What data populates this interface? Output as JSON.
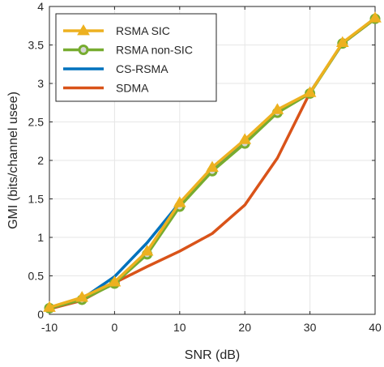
{
  "chart_data": {
    "type": "line",
    "title": "",
    "xlabel": "SNR (dB)",
    "ylabel": "GMI (bits/channel usee)",
    "xlim": [
      -10,
      40
    ],
    "ylim": [
      0,
      4
    ],
    "xticks": [
      -10,
      0,
      10,
      20,
      30,
      40
    ],
    "yticks": [
      0,
      0.5,
      1,
      1.5,
      2,
      2.5,
      3,
      3.5,
      4
    ],
    "xtick_labels": [
      "-10",
      "0",
      "10",
      "20",
      "30",
      "40"
    ],
    "ytick_labels": [
      "0",
      "0.5",
      "1",
      "1.5",
      "2",
      "2.5",
      "3",
      "3.5",
      "4"
    ],
    "grid": true,
    "legend_position": "top-left",
    "series": [
      {
        "name": "RSMA SIC",
        "color": "#EDB120",
        "marker": "triangle",
        "x": [
          -10,
          -5,
          0,
          5,
          10,
          15,
          20,
          25,
          30,
          35,
          40
        ],
        "y": [
          0.09,
          0.22,
          0.42,
          0.82,
          1.45,
          1.91,
          2.27,
          2.66,
          2.88,
          3.53,
          3.85
        ]
      },
      {
        "name": "RSMA non-SIC",
        "color": "#77AC30",
        "marker": "circle",
        "x": [
          -10,
          -5,
          0,
          5,
          10,
          15,
          20,
          25,
          30,
          35,
          40
        ],
        "y": [
          0.08,
          0.19,
          0.4,
          0.78,
          1.4,
          1.86,
          2.22,
          2.62,
          2.87,
          3.52,
          3.84
        ]
      },
      {
        "name": "CS-RSMA",
        "color": "#0072BD",
        "marker": "none",
        "x": [
          -10,
          -5,
          0,
          5,
          10,
          15,
          20,
          25,
          30,
          35,
          40
        ],
        "y": [
          0.08,
          0.2,
          0.49,
          0.93,
          1.45,
          1.87,
          2.26,
          2.63,
          2.88,
          3.52,
          3.85
        ]
      },
      {
        "name": "SDMA",
        "color": "#D95319",
        "marker": "none",
        "x": [
          -10,
          -5,
          0,
          5,
          10,
          15,
          20,
          25,
          30,
          35,
          40
        ],
        "y": [
          0.07,
          0.18,
          0.41,
          0.62,
          0.82,
          1.05,
          1.42,
          2.03,
          2.88,
          3.52,
          3.84
        ]
      }
    ]
  }
}
